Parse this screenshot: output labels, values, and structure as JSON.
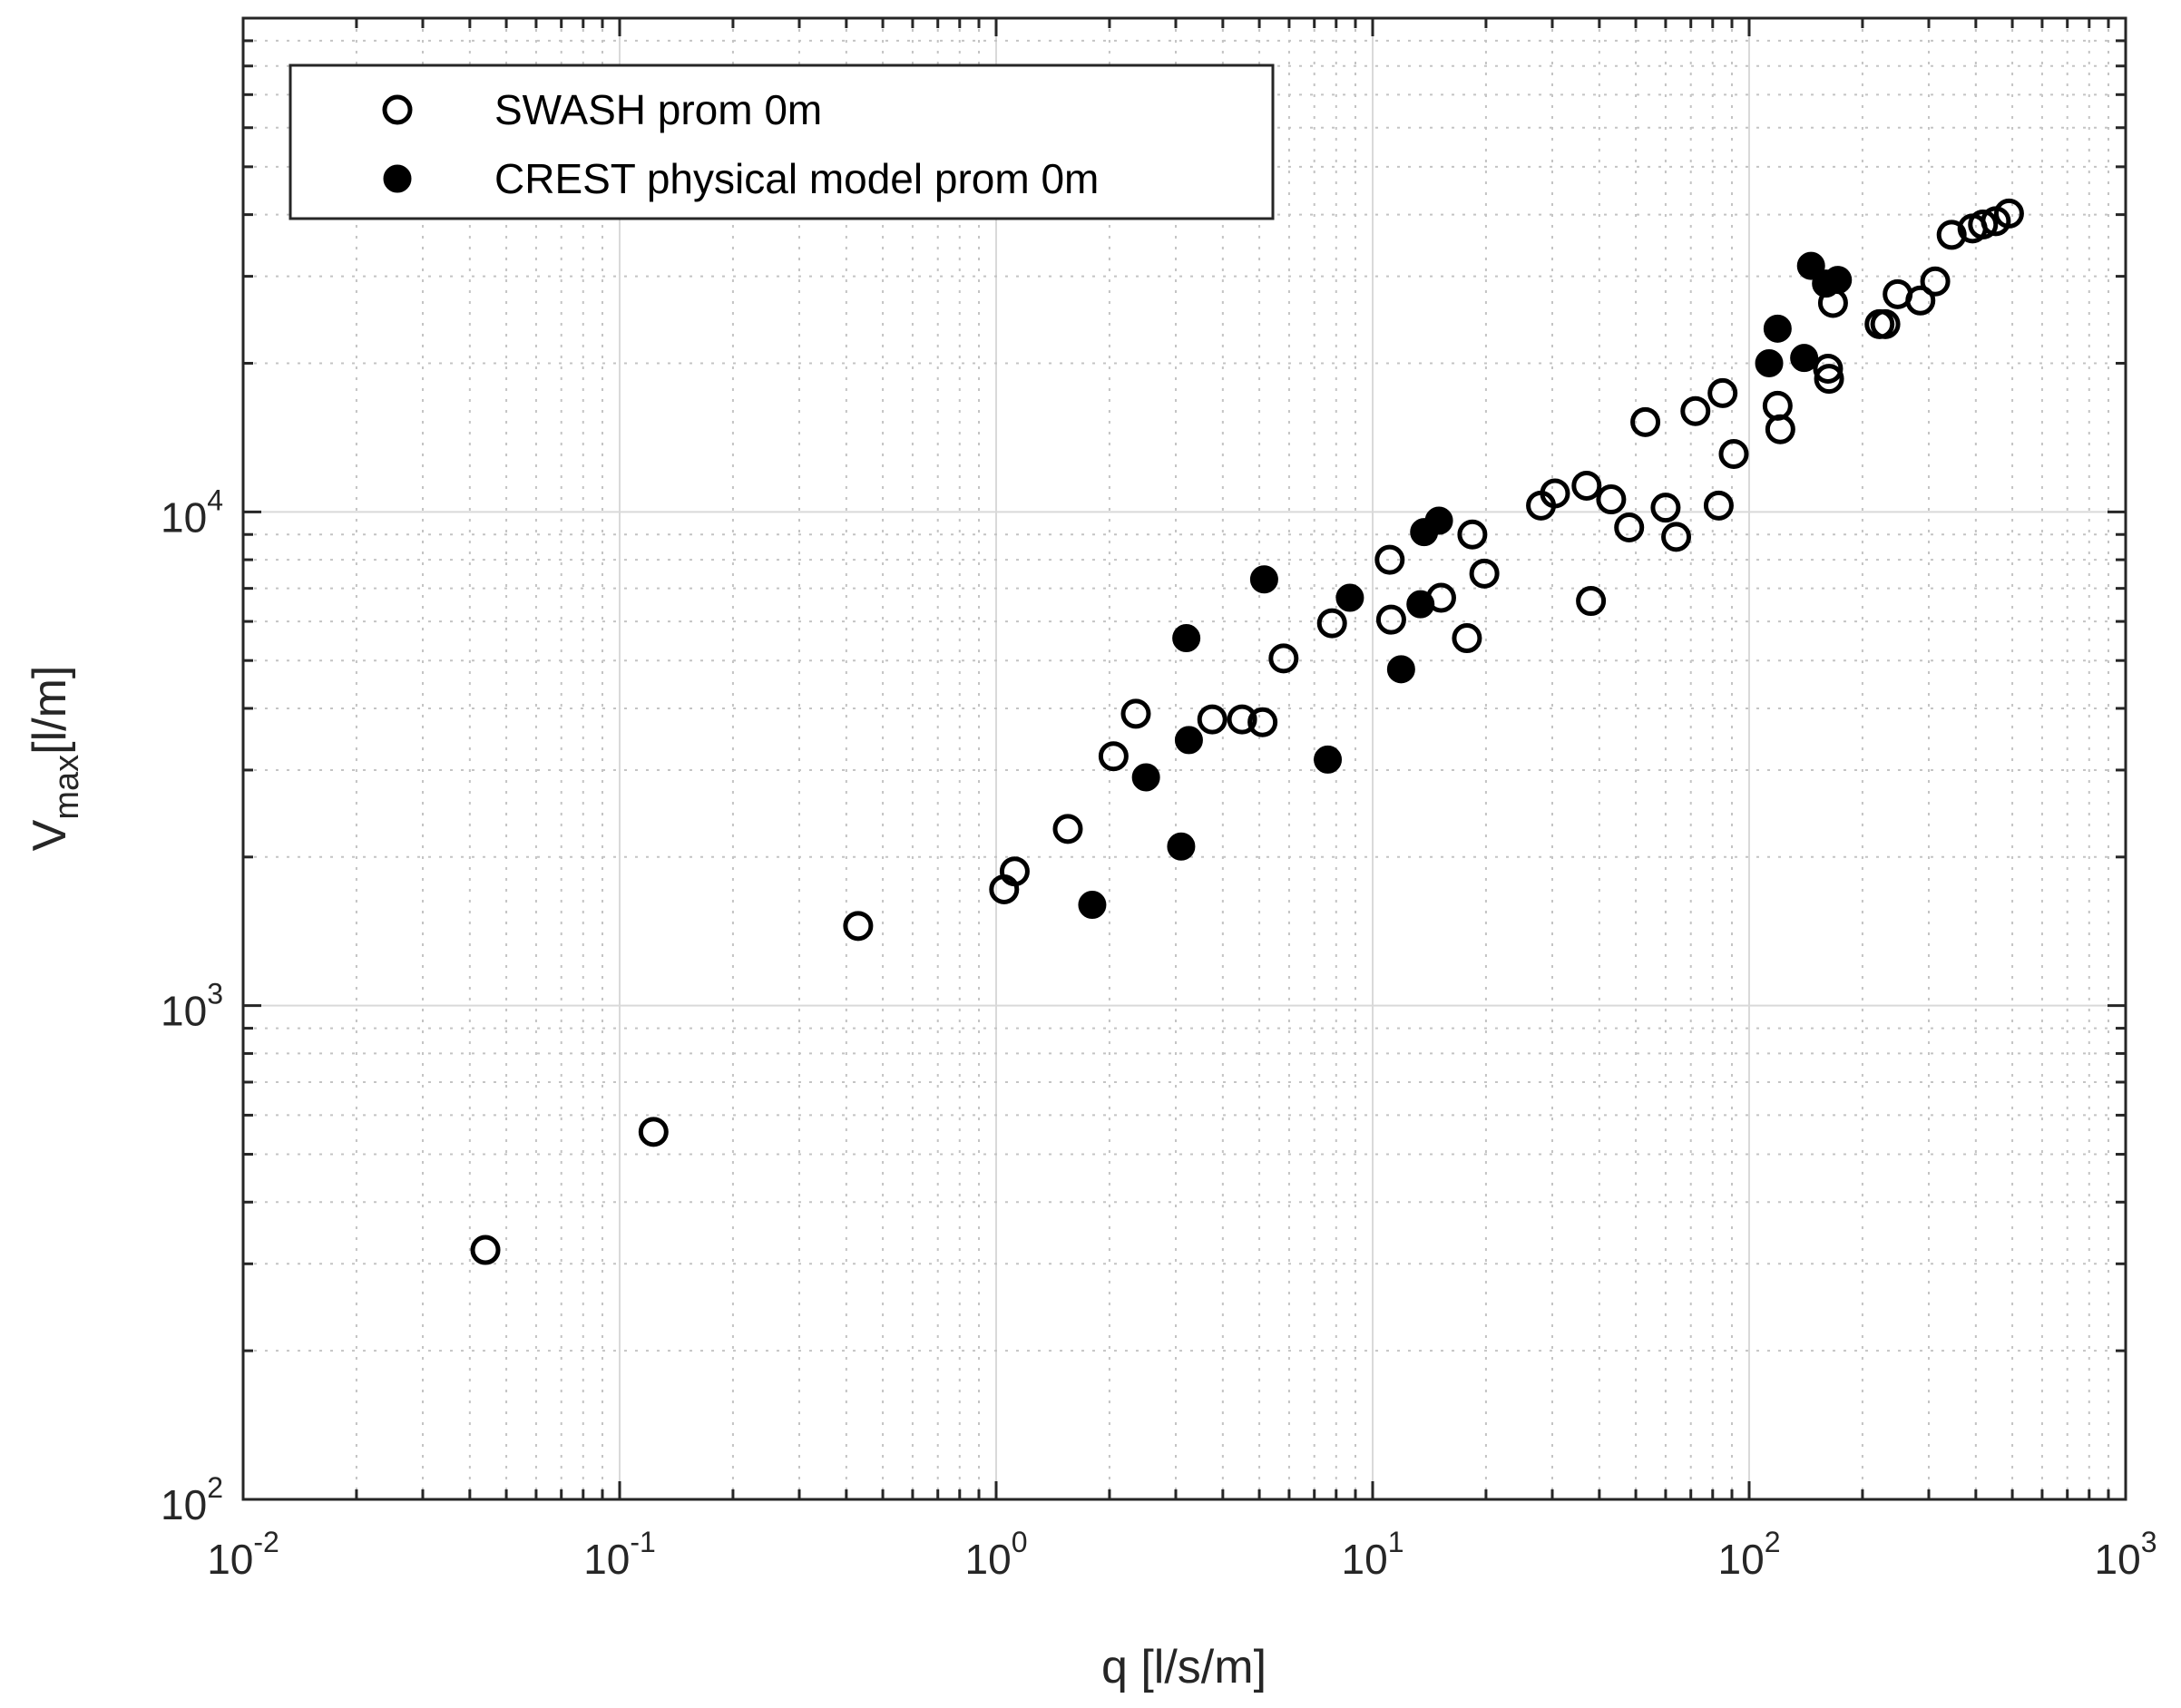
{
  "chart_data": {
    "type": "scatter",
    "x_scale": "log",
    "y_scale": "log",
    "xlim": [
      0.01,
      1000
    ],
    "ylim": [
      100,
      100000
    ],
    "xlabel": "q [l/s/m]",
    "ylabel": "V",
    "ylabel_subscript": "max",
    "ylabel_unit": "[l/m]",
    "grid": true,
    "legend_position": "top-left",
    "x_ticks": [
      {
        "base": "10",
        "exp": "-2"
      },
      {
        "base": "10",
        "exp": "-1"
      },
      {
        "base": "10",
        "exp": "0"
      },
      {
        "base": "10",
        "exp": "1"
      },
      {
        "base": "10",
        "exp": "2"
      },
      {
        "base": "10",
        "exp": "3"
      }
    ],
    "y_ticks": [
      {
        "base": "10",
        "exp": "2"
      },
      {
        "base": "10",
        "exp": "3"
      },
      {
        "base": "10",
        "exp": "4"
      }
    ],
    "series": [
      {
        "name": "SWASH prom 0m",
        "marker": "open-circle",
        "color": "#000000",
        "points": [
          [
            0.044,
            320
          ],
          [
            0.123,
            555
          ],
          [
            0.43,
            1450
          ],
          [
            1.05,
            1720
          ],
          [
            1.12,
            1870
          ],
          [
            1.55,
            2280
          ],
          [
            2.05,
            3200
          ],
          [
            2.35,
            3900
          ],
          [
            3.75,
            3800
          ],
          [
            4.5,
            3800
          ],
          [
            5.1,
            3750
          ],
          [
            5.8,
            5050
          ],
          [
            7.8,
            5950
          ],
          [
            11.1,
            8000
          ],
          [
            11.2,
            6050
          ],
          [
            15.2,
            6700
          ],
          [
            17.8,
            5550
          ],
          [
            18.4,
            9000
          ],
          [
            19.8,
            7500
          ],
          [
            28,
            10300
          ],
          [
            30.5,
            10900
          ],
          [
            37,
            11300
          ],
          [
            38,
            6600
          ],
          [
            43,
            10600
          ],
          [
            48,
            9300
          ],
          [
            53,
            15200
          ],
          [
            60,
            10200
          ],
          [
            64,
            8900
          ],
          [
            72,
            16000
          ],
          [
            83,
            10300
          ],
          [
            85,
            17400
          ],
          [
            91,
            13100
          ],
          [
            119,
            16400
          ],
          [
            121,
            14700
          ],
          [
            162,
            19500
          ],
          [
            163,
            18600
          ],
          [
            167,
            26500
          ],
          [
            222,
            24000
          ],
          [
            230,
            24000
          ],
          [
            248,
            27600
          ],
          [
            285,
            26800
          ],
          [
            312,
            29300
          ],
          [
            345,
            36400
          ],
          [
            392,
            37500
          ],
          [
            418,
            38200
          ],
          [
            452,
            38800
          ],
          [
            490,
            40200
          ]
        ]
      },
      {
        "name": "CREST physical model prom 0m",
        "marker": "filled-circle",
        "color": "#000000",
        "points": [
          [
            1.8,
            1600
          ],
          [
            2.5,
            2900
          ],
          [
            3.1,
            2100
          ],
          [
            3.2,
            5550
          ],
          [
            3.25,
            3450
          ],
          [
            5.15,
            7300
          ],
          [
            7.6,
            3150
          ],
          [
            8.7,
            6700
          ],
          [
            11.9,
            4800
          ],
          [
            13.4,
            6500
          ],
          [
            13.7,
            9100
          ],
          [
            15,
            9600
          ],
          [
            113,
            20000
          ],
          [
            119,
            23500
          ],
          [
            140,
            20500
          ],
          [
            146,
            31500
          ],
          [
            160,
            29000
          ],
          [
            172,
            29500
          ]
        ]
      }
    ]
  }
}
